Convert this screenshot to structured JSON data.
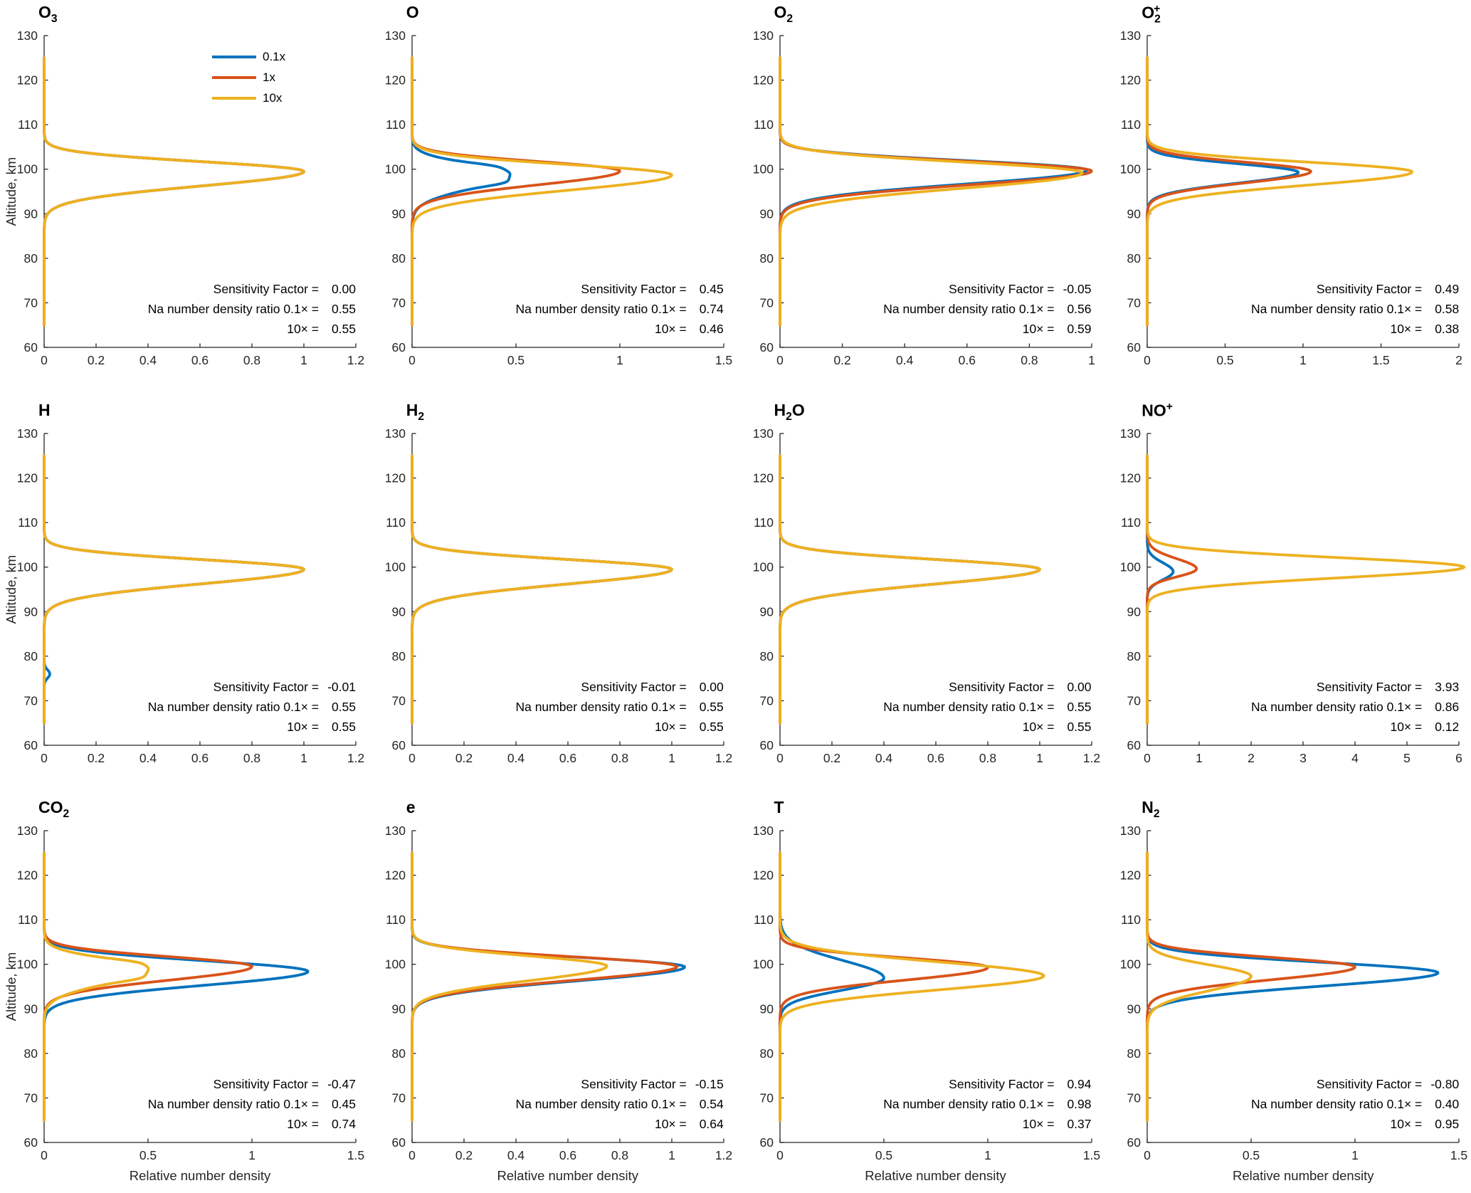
{
  "figure": {
    "ylabel": "Altitude, km",
    "xlabel": "Relative number density",
    "ylim": [
      60,
      130
    ],
    "yticks": [
      60,
      70,
      80,
      90,
      100,
      110,
      120,
      130
    ],
    "grid": "off",
    "legend_position": "top-right-first-panel",
    "legend": {
      "items": [
        {
          "label": "0.1x",
          "color": "#0072BD"
        },
        {
          "label": "1x",
          "color": "#D95319"
        },
        {
          "label": "10x",
          "color": "#EDB120"
        }
      ]
    },
    "annotation_labels": {
      "sensitivity": "Sensitivity Factor =",
      "ratio01": "Na number density ratio 0.1× =",
      "ratio10": "10× ="
    },
    "colors": {
      "blue": "#0072BD",
      "red": "#D95319",
      "yellow": "#EDB120",
      "axis": "#262626"
    }
  },
  "chart_data": [
    {
      "type": "line",
      "title_text": "O3",
      "title_parts": [
        [
          "O",
          ""
        ],
        [
          "3",
          "sub"
        ]
      ],
      "xlim": [
        0,
        1.2
      ],
      "xticks": [
        0,
        0.2,
        0.4,
        0.6,
        0.8,
        1,
        1.2
      ],
      "sensitivity_factor": "0.00",
      "ratio_01x": "0.55",
      "ratio_10x": "0.55",
      "series": [
        {
          "name": "0.1x",
          "color": "#0072BD",
          "peaks_A_alt_wlo_whi": [
            [
              1.0,
              99.5,
              4.6,
              3.1
            ]
          ]
        },
        {
          "name": "1x",
          "color": "#D95319",
          "peaks_A_alt_wlo_whi": [
            [
              1.0,
              99.5,
              4.6,
              3.1
            ]
          ]
        },
        {
          "name": "10x",
          "color": "#EDB120",
          "peaks_A_alt_wlo_whi": [
            [
              1.0,
              99.5,
              4.6,
              3.1
            ]
          ]
        }
      ]
    },
    {
      "type": "line",
      "title_text": "O",
      "title_parts": [
        [
          "O",
          ""
        ]
      ],
      "xlim": [
        0,
        1.5
      ],
      "xticks": [
        0,
        0.5,
        1,
        1.5
      ],
      "sensitivity_factor": "0.45",
      "ratio_01x": "0.74",
      "ratio_10x": "0.46",
      "series": [
        {
          "name": "0.1x",
          "color": "#0072BD",
          "peaks_A_alt_wlo_whi": [
            [
              0.47,
              98.9,
              4.6,
              3.3
            ],
            [
              0.05,
              100.8,
              0.9,
              0.9
            ],
            [
              0.05,
              96.9,
              1.0,
              1.0
            ]
          ]
        },
        {
          "name": "1x",
          "color": "#D95319",
          "peaks_A_alt_wlo_whi": [
            [
              1.0,
              99.6,
              4.4,
              3.0
            ]
          ]
        },
        {
          "name": "10x",
          "color": "#EDB120",
          "peaks_A_alt_wlo_whi": [
            [
              1.25,
              98.7,
              4.8,
              3.3
            ]
          ]
        }
      ]
    },
    {
      "type": "line",
      "title_text": "O2",
      "title_parts": [
        [
          "O",
          ""
        ],
        [
          "2",
          "sub"
        ]
      ],
      "xlim": [
        0,
        1
      ],
      "xticks": [
        0,
        0.2,
        0.4,
        0.6,
        0.8,
        1
      ],
      "sensitivity_factor": "-0.05",
      "ratio_01x": "0.56",
      "ratio_10x": "0.59",
      "series": [
        {
          "name": "0.1x",
          "color": "#0072BD",
          "peaks_A_alt_wlo_whi": [
            [
              0.985,
              99.8,
              4.4,
              3.0
            ]
          ]
        },
        {
          "name": "1x",
          "color": "#D95319",
          "peaks_A_alt_wlo_whi": [
            [
              1.0,
              99.6,
              4.4,
              3.1
            ]
          ]
        },
        {
          "name": "10x",
          "color": "#EDB120",
          "peaks_A_alt_wlo_whi": [
            [
              0.97,
              99.2,
              4.9,
              3.4
            ]
          ]
        }
      ]
    },
    {
      "type": "line",
      "title_text": "O2+",
      "title_parts": [
        [
          "O",
          ""
        ],
        [
          "2",
          "sub"
        ],
        [
          "+",
          "sup-stack"
        ]
      ],
      "xlim": [
        0,
        2
      ],
      "xticks": [
        0,
        0.5,
        1,
        1.5,
        2
      ],
      "sensitivity_factor": "0.49",
      "ratio_01x": "0.58",
      "ratio_10x": "0.38",
      "series": [
        {
          "name": "0.1x",
          "color": "#0072BD",
          "peaks_A_alt_wlo_whi": [
            [
              0.97,
              99.3,
              3.4,
              2.7
            ]
          ]
        },
        {
          "name": "1x",
          "color": "#D95319",
          "peaks_A_alt_wlo_whi": [
            [
              1.05,
              99.5,
              3.6,
              2.9
            ]
          ]
        },
        {
          "name": "10x",
          "color": "#EDB120",
          "peaks_A_alt_wlo_whi": [
            [
              1.7,
              99.4,
              4.2,
              3.1
            ]
          ]
        }
      ]
    },
    {
      "type": "line",
      "title_text": "H",
      "title_parts": [
        [
          "H",
          ""
        ]
      ],
      "xlim": [
        0,
        1.2
      ],
      "xticks": [
        0,
        0.2,
        0.4,
        0.6,
        0.8,
        1,
        1.2
      ],
      "sensitivity_factor": "-0.01",
      "ratio_01x": "0.55",
      "ratio_10x": "0.55",
      "series": [
        {
          "name": "0.1x",
          "color": "#0072BD",
          "peaks_A_alt_wlo_whi": [
            [
              1.0,
              99.5,
              4.6,
              3.1
            ],
            [
              0.022,
              76,
              1.3,
              1.3
            ]
          ]
        },
        {
          "name": "1x",
          "color": "#D95319",
          "peaks_A_alt_wlo_whi": [
            [
              1.0,
              99.5,
              4.6,
              3.1
            ]
          ]
        },
        {
          "name": "10x",
          "color": "#EDB120",
          "peaks_A_alt_wlo_whi": [
            [
              1.0,
              99.5,
              4.6,
              3.1
            ]
          ]
        }
      ]
    },
    {
      "type": "line",
      "title_text": "H2",
      "title_parts": [
        [
          "H",
          ""
        ],
        [
          "2",
          "sub"
        ]
      ],
      "xlim": [
        0,
        1.2
      ],
      "xticks": [
        0,
        0.2,
        0.4,
        0.6,
        0.8,
        1,
        1.2
      ],
      "sensitivity_factor": "0.00",
      "ratio_01x": "0.55",
      "ratio_10x": "0.55",
      "series": [
        {
          "name": "0.1x",
          "color": "#0072BD",
          "peaks_A_alt_wlo_whi": [
            [
              1.0,
              99.5,
              4.6,
              3.1
            ]
          ]
        },
        {
          "name": "1x",
          "color": "#D95319",
          "peaks_A_alt_wlo_whi": [
            [
              1.0,
              99.5,
              4.6,
              3.1
            ]
          ]
        },
        {
          "name": "10x",
          "color": "#EDB120",
          "peaks_A_alt_wlo_whi": [
            [
              1.0,
              99.5,
              4.6,
              3.1
            ]
          ]
        }
      ]
    },
    {
      "type": "line",
      "title_text": "H2O",
      "title_parts": [
        [
          "H",
          ""
        ],
        [
          "2",
          "sub"
        ],
        [
          "O",
          ""
        ]
      ],
      "xlim": [
        0,
        1.2
      ],
      "xticks": [
        0,
        0.2,
        0.4,
        0.6,
        0.8,
        1,
        1.2
      ],
      "sensitivity_factor": "0.00",
      "ratio_01x": "0.55",
      "ratio_10x": "0.55",
      "series": [
        {
          "name": "0.1x",
          "color": "#0072BD",
          "peaks_A_alt_wlo_whi": [
            [
              1.0,
              99.5,
              4.6,
              3.1
            ]
          ]
        },
        {
          "name": "1x",
          "color": "#D95319",
          "peaks_A_alt_wlo_whi": [
            [
              1.0,
              99.5,
              4.6,
              3.1
            ]
          ]
        },
        {
          "name": "10x",
          "color": "#EDB120",
          "peaks_A_alt_wlo_whi": [
            [
              1.0,
              99.5,
              4.6,
              3.1
            ]
          ]
        }
      ]
    },
    {
      "type": "line",
      "title_text": "NO+",
      "title_parts": [
        [
          "NO",
          ""
        ],
        [
          "+",
          "sup"
        ]
      ],
      "xlim": [
        0,
        6
      ],
      "xticks": [
        0,
        1,
        2,
        3,
        4,
        5,
        6
      ],
      "sensitivity_factor": "3.93",
      "ratio_01x": "0.86",
      "ratio_10x": "0.12",
      "series": [
        {
          "name": "0.1x",
          "color": "#0072BD",
          "peaks_A_alt_wlo_whi": [
            [
              0.5,
              99.0,
              2.6,
              2.8
            ]
          ]
        },
        {
          "name": "1x",
          "color": "#D95319",
          "peaks_A_alt_wlo_whi": [
            [
              0.95,
              99.6,
              2.5,
              3.2
            ]
          ]
        },
        {
          "name": "10x",
          "color": "#EDB120",
          "peaks_A_alt_wlo_whi": [
            [
              6.1,
              100.0,
              3.4,
              3.0
            ]
          ]
        }
      ]
    },
    {
      "type": "line",
      "title_text": "CO2",
      "title_parts": [
        [
          "CO",
          ""
        ],
        [
          "2",
          "sub"
        ]
      ],
      "xlim": [
        0,
        1.5
      ],
      "xticks": [
        0,
        0.5,
        1,
        1.5
      ],
      "sensitivity_factor": "-0.47",
      "ratio_01x": "0.45",
      "ratio_10x": "0.74",
      "series": [
        {
          "name": "0.1x",
          "color": "#0072BD",
          "peaks_A_alt_wlo_whi": [
            [
              1.27,
              98.4,
              4.4,
              3.4
            ]
          ]
        },
        {
          "name": "1x",
          "color": "#D95319",
          "peaks_A_alt_wlo_whi": [
            [
              1.0,
              99.5,
              4.3,
              3.1
            ]
          ]
        },
        {
          "name": "10x",
          "color": "#EDB120",
          "peaks_A_alt_wlo_whi": [
            [
              0.5,
              98.9,
              4.6,
              3.3
            ],
            [
              0.05,
              100.6,
              0.9,
              0.9
            ],
            [
              0.05,
              96.8,
              1.0,
              1.0
            ]
          ]
        }
      ]
    },
    {
      "type": "line",
      "title_text": "e",
      "title_parts": [
        [
          "e",
          ""
        ]
      ],
      "xlim": [
        0,
        1.2
      ],
      "xticks": [
        0,
        0.2,
        0.4,
        0.6,
        0.8,
        1,
        1.2
      ],
      "sensitivity_factor": "-0.15",
      "ratio_01x": "0.54",
      "ratio_10x": "0.64",
      "series": [
        {
          "name": "0.1x",
          "color": "#0072BD",
          "peaks_A_alt_wlo_whi": [
            [
              1.05,
              99.4,
              4.4,
              3.1
            ]
          ]
        },
        {
          "name": "1x",
          "color": "#D95319",
          "peaks_A_alt_wlo_whi": [
            [
              1.02,
              99.5,
              4.4,
              3.1
            ]
          ]
        },
        {
          "name": "10x",
          "color": "#EDB120",
          "peaks_A_alt_wlo_whi": [
            [
              0.75,
              99.6,
              4.6,
              3.2
            ]
          ]
        }
      ]
    },
    {
      "type": "line",
      "title_text": "T",
      "title_parts": [
        [
          "T",
          ""
        ]
      ],
      "xlim": [
        0,
        1.5
      ],
      "xticks": [
        0,
        0.5,
        1,
        1.5
      ],
      "sensitivity_factor": "0.94",
      "ratio_01x": "0.98",
      "ratio_10x": "0.37",
      "series": [
        {
          "name": "0.1x",
          "color": "#0072BD",
          "peaks_A_alt_wlo_whi": [
            [
              0.5,
              96.9,
              3.8,
              5.6
            ]
          ]
        },
        {
          "name": "1x",
          "color": "#D95319",
          "peaks_A_alt_wlo_whi": [
            [
              1.0,
              99.3,
              4.0,
              3.0
            ]
          ]
        },
        {
          "name": "10x",
          "color": "#EDB120",
          "peaks_A_alt_wlo_whi": [
            [
              1.27,
              97.4,
              4.4,
              4.4
            ]
          ]
        }
      ]
    },
    {
      "type": "line",
      "title_text": "N2",
      "title_parts": [
        [
          "N",
          ""
        ],
        [
          "2",
          "sub"
        ]
      ],
      "xlim": [
        0,
        1.5
      ],
      "xticks": [
        0,
        0.5,
        1,
        1.5
      ],
      "sensitivity_factor": "-0.80",
      "ratio_01x": "0.40",
      "ratio_10x": "0.95",
      "series": [
        {
          "name": "0.1x",
          "color": "#0072BD",
          "peaks_A_alt_wlo_whi": [
            [
              1.4,
              98.1,
              4.2,
              3.3
            ]
          ]
        },
        {
          "name": "1x",
          "color": "#D95319",
          "peaks_A_alt_wlo_whi": [
            [
              1.0,
              99.4,
              4.0,
              3.0
            ]
          ]
        },
        {
          "name": "10x",
          "color": "#EDB120",
          "peaks_A_alt_wlo_whi": [
            [
              0.5,
              97.3,
              4.5,
              3.6
            ]
          ]
        }
      ]
    }
  ]
}
